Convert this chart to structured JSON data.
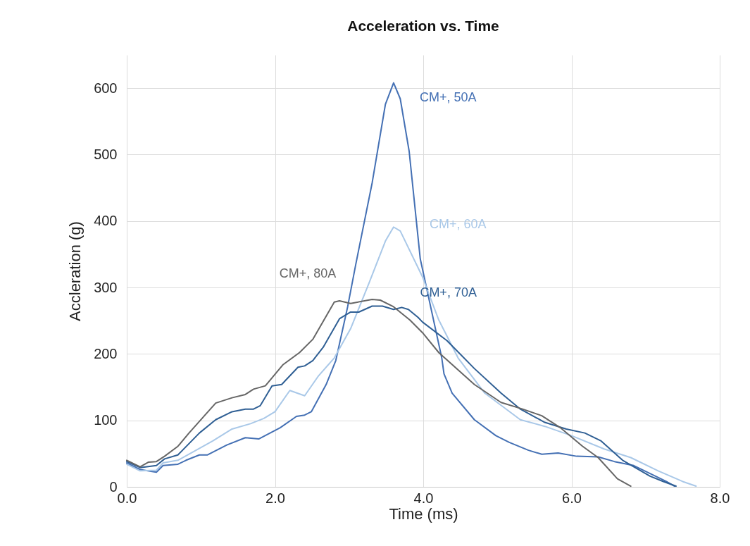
{
  "chart_data": {
    "type": "line",
    "title": "Acceleration vs. Time",
    "xlabel": "Time (ms)",
    "ylabel": "Accleration (g)",
    "xlim": [
      0,
      8
    ],
    "ylim": [
      0,
      650
    ],
    "xticks": [
      {
        "value": 0,
        "label": "0.0"
      },
      {
        "value": 2,
        "label": "2.0"
      },
      {
        "value": 4,
        "label": "4.0"
      },
      {
        "value": 6,
        "label": "6.0"
      },
      {
        "value": 8,
        "label": "8.0"
      }
    ],
    "yticks": [
      0,
      100,
      200,
      300,
      400,
      500,
      600
    ],
    "grid": true,
    "legend": false,
    "marker": "none",
    "line_style": "solid",
    "series": [
      {
        "name": "CM+, 50A",
        "color": "#4470b4",
        "x": [
          0,
          0.18,
          0.4,
          0.49,
          0.69,
          0.8,
          0.98,
          1.09,
          1.35,
          1.6,
          1.78,
          2.07,
          2.29,
          2.4,
          2.49,
          2.69,
          2.82,
          2.98,
          3.09,
          3.31,
          3.49,
          3.6,
          3.69,
          3.81,
          3.96,
          4.1,
          4.25,
          4.28,
          4.39,
          4.69,
          4.98,
          5.16,
          5.42,
          5.6,
          5.82,
          6.07,
          6.36,
          6.58,
          6.84,
          7.06,
          7.28,
          7.39
        ],
        "values": [
          36,
          26,
          22,
          32,
          34,
          40,
          48,
          48,
          63,
          74,
          72,
          89,
          106,
          108,
          113,
          154,
          190,
          271,
          335,
          457,
          576,
          608,
          584,
          505,
          343,
          271,
          194,
          170,
          141,
          101,
          77,
          67,
          55,
          49,
          51,
          46,
          45,
          38,
          32,
          20,
          8,
          1
        ]
      },
      {
        "name": "CM+, 60A",
        "color": "#a9c8e8",
        "x": [
          0,
          0.18,
          0.4,
          0.49,
          0.69,
          0.87,
          1.16,
          1.42,
          1.67,
          1.85,
          2.0,
          2.2,
          2.4,
          2.58,
          2.8,
          3.02,
          3.27,
          3.49,
          3.6,
          3.69,
          3.99,
          4.21,
          4.47,
          4.83,
          5.31,
          5.64,
          6.0,
          6.44,
          6.8,
          7.17,
          7.5,
          7.68
        ],
        "values": [
          34,
          24,
          25,
          36,
          40,
          51,
          69,
          87,
          95,
          103,
          113,
          145,
          137,
          166,
          194,
          238,
          307,
          370,
          391,
          385,
          316,
          251,
          194,
          141,
          101,
          91,
          77,
          57,
          44,
          24,
          8,
          1
        ]
      },
      {
        "name": "CM+, 70A",
        "color": "#2f5f94",
        "x": [
          0,
          0.18,
          0.4,
          0.51,
          0.69,
          0.98,
          1.2,
          1.42,
          1.6,
          1.71,
          1.8,
          1.96,
          2.09,
          2.31,
          2.4,
          2.51,
          2.65,
          2.87,
          3.02,
          3.13,
          3.31,
          3.45,
          3.6,
          3.71,
          3.8,
          3.93,
          3.99,
          4.32,
          4.69,
          5.05,
          5.31,
          5.64,
          5.93,
          6.18,
          6.4,
          6.69,
          7.06,
          7.24,
          7.41
        ],
        "values": [
          38,
          29,
          32,
          42,
          48,
          81,
          101,
          113,
          117,
          117,
          122,
          152,
          154,
          180,
          182,
          190,
          210,
          253,
          263,
          263,
          272,
          272,
          267,
          270,
          267,
          255,
          248,
          220,
          178,
          141,
          117,
          97,
          87,
          81,
          69,
          40,
          16,
          8,
          1
        ]
      },
      {
        "name": "CM+, 80A",
        "color": "#666666",
        "x": [
          0,
          0.18,
          0.29,
          0.4,
          0.51,
          0.69,
          0.84,
          1.2,
          1.42,
          1.6,
          1.71,
          1.87,
          2.11,
          2.33,
          2.51,
          2.8,
          2.87,
          3.02,
          3.31,
          3.42,
          3.6,
          3.82,
          3.99,
          4.21,
          4.69,
          5.05,
          5.34,
          5.6,
          5.85,
          6.15,
          6.36,
          6.62,
          6.8
        ],
        "values": [
          40,
          30,
          37,
          38,
          46,
          61,
          81,
          126,
          134,
          139,
          147,
          152,
          184,
          202,
          222,
          278,
          280,
          276,
          282,
          281,
          271,
          251,
          232,
          202,
          154,
          127,
          117,
          107,
          89,
          61,
          44,
          12,
          1
        ]
      }
    ]
  }
}
